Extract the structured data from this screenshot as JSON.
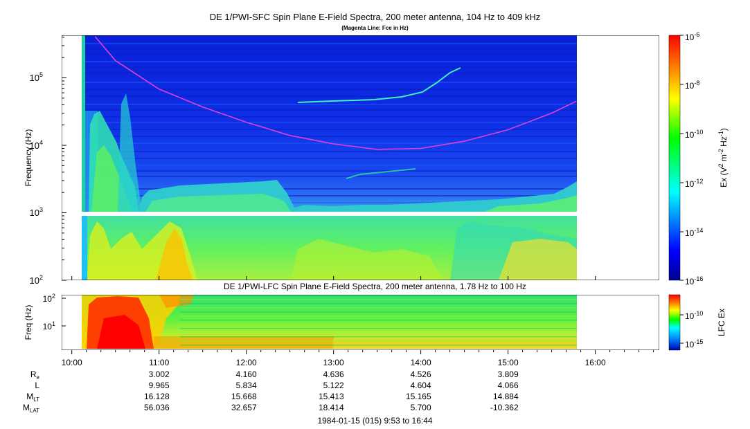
{
  "panel_sfc": {
    "title": "DE 1/PWI-SFC  Spin Plane E-Field Spectra, 200 meter antenna, 104 Hz to 409 kHz",
    "subtitle": "(Magenta Line: Fce in Hz)",
    "ylabel": "Frequency (Hz)",
    "colorbar_label": "Ex (V2 m-2 Hz-1)"
  },
  "panel_lfc": {
    "title": "DE 1/PWI-LFC  Spin Plane E-Field Spectra, 200 meter antenna, 1.78 Hz to 100 Hz",
    "ylabel": "Freq (Hz)",
    "colorbar_label": "LFC Ex"
  },
  "footer": "1984-01-15 (015) 9:53 to 16:44",
  "chart_data": [
    {
      "type": "heatmap",
      "title": "DE 1/PWI-SFC  Spin Plane E-Field Spectra, 200 meter antenna, 104 Hz to 409 kHz",
      "subtitle": "(Magenta Line: Fce in Hz)",
      "ylabel": "Frequency (Hz)",
      "yscale": "log",
      "ylim": [
        100,
        409000
      ],
      "y_ticks": [
        "10^2",
        "10^3",
        "10^4",
        "10^5"
      ],
      "x_ticks": [
        "10:00",
        "11:00",
        "12:00",
        "13:00",
        "14:00",
        "15:00",
        "16:00"
      ],
      "xlim": [
        "09:53",
        "16:44"
      ],
      "data_coverage": [
        "10:06",
        "15:47"
      ],
      "colorbar": {
        "label": "Ex (V2 m-2 Hz-1)",
        "scale": "log",
        "range": [
          1e-16,
          1e-06
        ],
        "tick_labels": [
          "10^-6",
          "10^-8",
          "10^-10",
          "10^-12",
          "10^-14",
          "10^-16"
        ]
      },
      "overlay_line": {
        "name": "Fce in Hz",
        "color": "#e040e0",
        "points": [
          {
            "t": "10:16",
            "f": 409000
          },
          {
            "t": "10:30",
            "f": 180000
          },
          {
            "t": "11:00",
            "f": 68000
          },
          {
            "t": "11:30",
            "f": 37000
          },
          {
            "t": "12:00",
            "f": 22000
          },
          {
            "t": "12:30",
            "f": 14000
          },
          {
            "t": "13:00",
            "f": 10500
          },
          {
            "t": "13:30",
            "f": 8700
          },
          {
            "t": "14:00",
            "f": 9000
          },
          {
            "t": "14:30",
            "f": 11500
          },
          {
            "t": "15:00",
            "f": 17000
          },
          {
            "t": "15:30",
            "f": 30000
          },
          {
            "t": "15:47",
            "f": 45000
          }
        ]
      }
    },
    {
      "type": "heatmap",
      "title": "DE 1/PWI-LFC  Spin Plane E-Field Spectra, 200 meter antenna, 1.78 Hz to 100 Hz",
      "ylabel": "Freq (Hz)",
      "yscale": "log",
      "ylim": [
        1.78,
        100
      ],
      "y_ticks": [
        "10^1",
        "10^2"
      ],
      "x_ticks": [
        "10:00",
        "11:00",
        "12:00",
        "13:00",
        "14:00",
        "15:00",
        "16:00"
      ],
      "xlim": [
        "09:53",
        "16:44"
      ],
      "colorbar": {
        "label": "LFC Ex",
        "scale": "log",
        "tick_labels": [
          "10^-10",
          "10^-15"
        ]
      }
    }
  ],
  "ephemeris": {
    "labels": [
      "Re",
      "L",
      "MLT",
      "MLAT"
    ],
    "times": [
      "11:00",
      "12:00",
      "13:00",
      "14:00",
      "15:00"
    ],
    "rows": [
      [
        "3.002",
        "4.160",
        "4.636",
        "4.526",
        "3.809"
      ],
      [
        "9.965",
        "5.834",
        "5.122",
        "4.604",
        "4.066"
      ],
      [
        "16.128",
        "15.668",
        "15.413",
        "15.165",
        "14.884"
      ],
      [
        "56.036",
        "32.657",
        "18.414",
        "5.700",
        "-10.362"
      ]
    ]
  }
}
